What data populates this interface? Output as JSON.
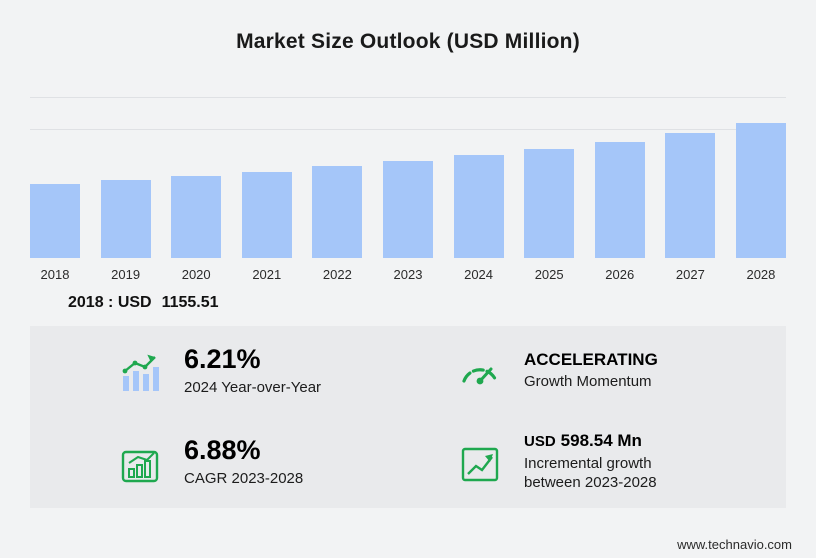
{
  "title": "Market Size Outlook (USD Million)",
  "accent_color": "#1fa84f",
  "bar_color": "#a5c6f9",
  "chart_data": {
    "type": "bar",
    "title": "Market Size Outlook (USD Million)",
    "xlabel": "",
    "ylabel": "USD Million",
    "categories": [
      "2018",
      "2019",
      "2020",
      "2021",
      "2022",
      "2023",
      "2024",
      "2025",
      "2026",
      "2027",
      "2028"
    ],
    "values": [
      1155.51,
      1215,
      1280,
      1350,
      1430,
      1516,
      1610,
      1710,
      1815,
      1955,
      2114.05
    ],
    "ylim": [
      0,
      2500
    ],
    "gridlines": [
      2000,
      2500
    ],
    "grid": true,
    "legend": false
  },
  "chart_note": {
    "year_label": "2018 : USD",
    "value": "1155.51"
  },
  "stats": [
    {
      "icon": "yoy-bars-trend-icon",
      "value": "6.21%",
      "label": "2024 Year-over-Year"
    },
    {
      "icon": "gauge-icon",
      "value": "ACCELERATING",
      "label": "Growth Momentum"
    },
    {
      "icon": "cagr-bar-chart-icon",
      "value": "6.88%",
      "label": "CAGR 2023-2028"
    },
    {
      "icon": "incremental-growth-icon",
      "value_prefix": "USD",
      "value": "598.54 Mn",
      "label": "Incremental growth between 2023-2028"
    }
  ],
  "footer": {
    "website": "www.technavio.com"
  }
}
